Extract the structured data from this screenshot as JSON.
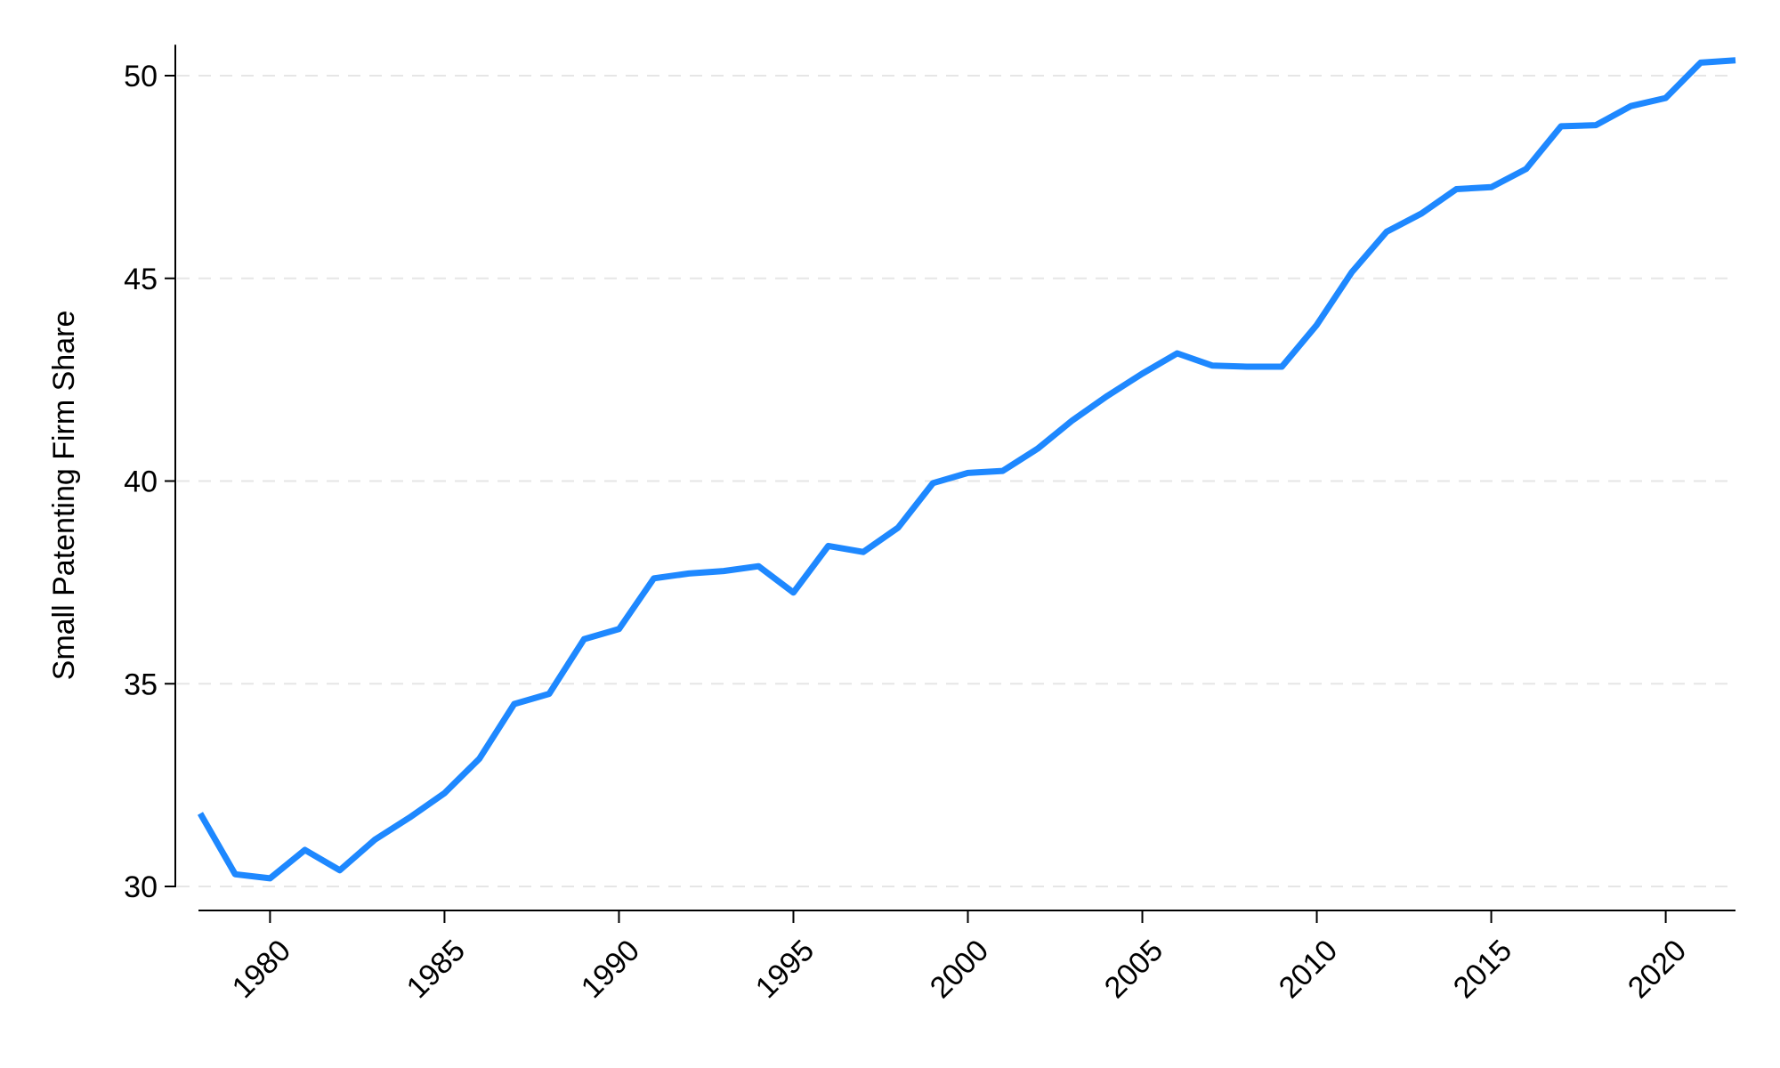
{
  "chart_data": {
    "type": "line",
    "title": "",
    "xlabel": "",
    "ylabel": "Small Patenting Firm Share",
    "xlim": [
      1978,
      2022
    ],
    "ylim": [
      30,
      50.5
    ],
    "x_ticks": [
      1980,
      1985,
      1990,
      1995,
      2000,
      2005,
      2010,
      2015,
      2020
    ],
    "y_ticks": [
      30,
      35,
      40,
      45,
      50
    ],
    "grid": "horizontal-dashed",
    "legend": "none",
    "series": [
      {
        "color": "#1E88FF",
        "x": [
          1978,
          1979,
          1980,
          1981,
          1982,
          1983,
          1984,
          1985,
          1986,
          1987,
          1988,
          1989,
          1990,
          1991,
          1992,
          1993,
          1994,
          1995,
          1996,
          1997,
          1998,
          1999,
          2000,
          2001,
          2002,
          2003,
          2004,
          2005,
          2006,
          2007,
          2008,
          2009,
          2010,
          2011,
          2012,
          2013,
          2014,
          2015,
          2016,
          2017,
          2018,
          2019,
          2020,
          2021,
          2022
        ],
        "values": [
          31.8,
          30.3,
          30.2,
          30.9,
          30.4,
          31.15,
          31.7,
          32.3,
          33.15,
          34.5,
          34.75,
          36.1,
          36.35,
          37.6,
          37.72,
          37.78,
          37.9,
          37.25,
          38.4,
          38.25,
          38.85,
          39.95,
          40.2,
          40.25,
          40.8,
          41.5,
          42.1,
          42.65,
          43.15,
          42.85,
          42.82,
          42.82,
          43.85,
          45.15,
          46.15,
          46.6,
          47.2,
          47.25,
          47.7,
          48.75,
          48.78,
          49.25,
          49.45,
          50.32,
          50.38
        ]
      }
    ]
  }
}
